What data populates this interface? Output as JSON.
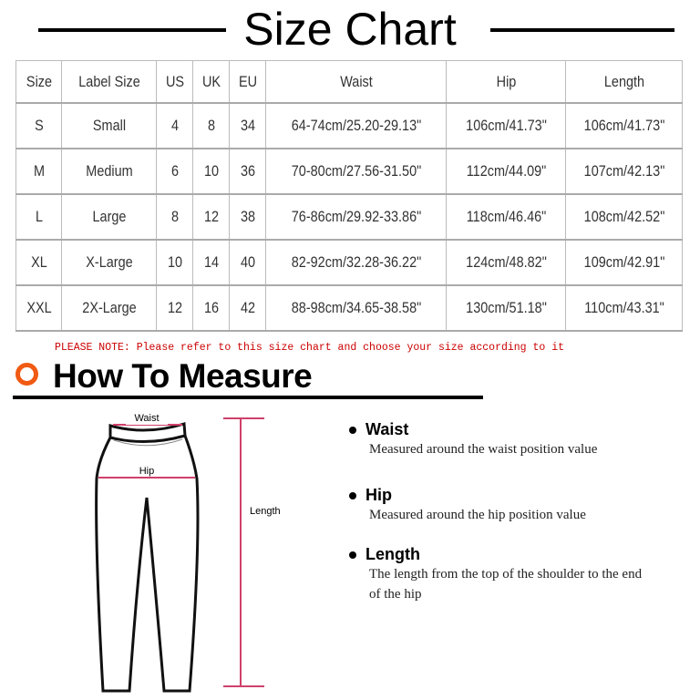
{
  "title": "Size Chart",
  "table": {
    "headers": [
      "Size",
      "Label Size",
      "US",
      "UK",
      "EU",
      "Waist",
      "Hip",
      "Length"
    ],
    "rows": [
      [
        "S",
        "Small",
        "4",
        "8",
        "34",
        "64-74cm/25.20-29.13\"",
        "106cm/41.73\"",
        "106cm/41.73\""
      ],
      [
        "M",
        "Medium",
        "6",
        "10",
        "36",
        "70-80cm/27.56-31.50\"",
        "112cm/44.09\"",
        "107cm/42.13\""
      ],
      [
        "L",
        "Large",
        "8",
        "12",
        "38",
        "76-86cm/29.92-33.86\"",
        "118cm/46.46\"",
        "108cm/42.52\""
      ],
      [
        "XL",
        "X-Large",
        "10",
        "14",
        "40",
        "82-92cm/32.28-36.22\"",
        "124cm/48.82\"",
        "109cm/42.91\""
      ],
      [
        "XXL",
        "2X-Large",
        "12",
        "16",
        "42",
        "88-98cm/34.65-38.58\"",
        "130cm/51.18\"",
        "110cm/43.31\""
      ]
    ]
  },
  "note": "PLEASE NOTE: Please refer to this size chart and choose your size according to it",
  "how_to": {
    "title": "How To Measure",
    "accent_color": "#f05a12",
    "diagram_labels": {
      "waist": "Waist",
      "hip": "Hip",
      "length": "Length"
    },
    "items": [
      {
        "label": "Waist",
        "desc": "Measured around the waist position value"
      },
      {
        "label": "Hip",
        "desc": "Measured around the  hip position value"
      },
      {
        "label": "Length",
        "desc": "The length from the top of the shoulder to the end of the hip"
      }
    ]
  }
}
